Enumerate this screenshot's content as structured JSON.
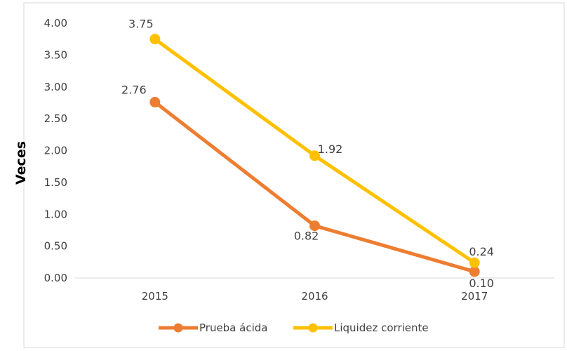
{
  "chart_data": {
    "type": "line",
    "categories": [
      "2015",
      "2016",
      "2017"
    ],
    "series": [
      {
        "name": "Prueba ácida",
        "values": [
          2.76,
          0.82,
          0.1
        ],
        "color": "#ED7D31",
        "labels": [
          "2.76",
          "0.82",
          "0.10"
        ]
      },
      {
        "name": "Liquidez corriente",
        "values": [
          3.75,
          1.92,
          0.24
        ],
        "color": "#FFC000",
        "labels": [
          "3.75",
          "1.92",
          "0.24"
        ]
      }
    ],
    "yticks": [
      "0.00",
      "0.50",
      "1.00",
      "1.50",
      "2.00",
      "2.50",
      "3.00",
      "3.50",
      "4.00"
    ],
    "ylim": [
      0,
      4
    ],
    "title": "",
    "xlabel": "",
    "ylabel": "Veces",
    "grid": false,
    "legend_position": "bottom"
  }
}
